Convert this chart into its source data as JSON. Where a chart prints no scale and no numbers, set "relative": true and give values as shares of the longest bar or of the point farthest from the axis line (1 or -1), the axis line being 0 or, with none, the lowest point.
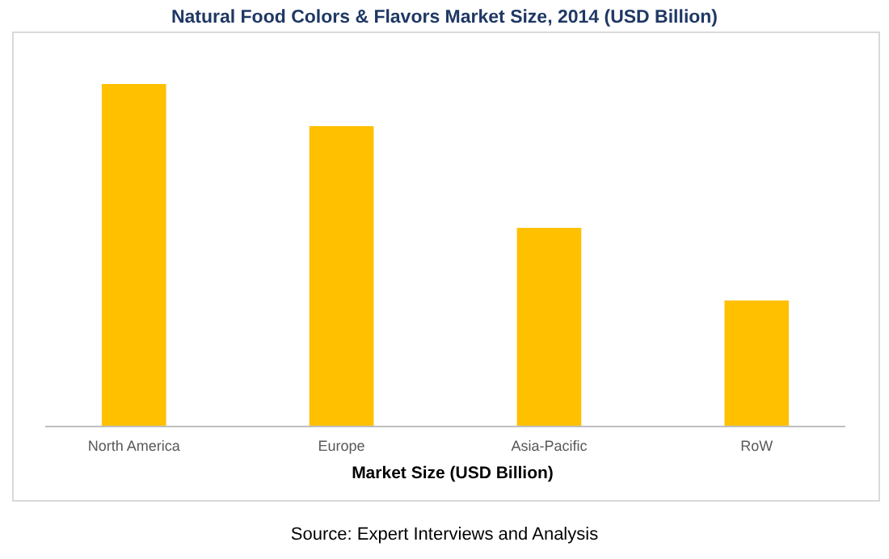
{
  "chart_data": {
    "type": "bar",
    "title": "Natural Food Colors & Flavors Market Size, 2014 (USD Billion)",
    "xlabel": "Market Size (USD Billion)",
    "annotations": [
      "Source: Expert Interviews and Analysis"
    ],
    "categories": [
      "North America",
      "Europe",
      "Asia-Pacific",
      "RoW"
    ],
    "values": [
      1,
      0.877,
      0.58,
      0.368
    ],
    "color": "#ffc000",
    "relative": true
  }
}
